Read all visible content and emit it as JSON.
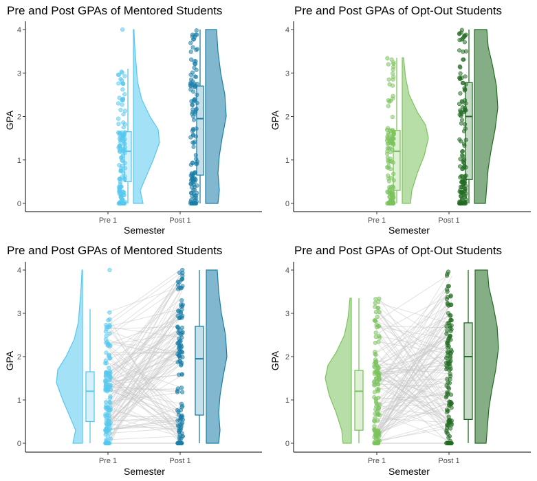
{
  "chart_data": [
    {
      "type": "raincloud",
      "title": "Pre and Post GPAs of Mentored Students",
      "xlabel": "Semester",
      "ylabel": "GPA",
      "ylim": [
        0,
        4
      ],
      "yticks": [
        "0",
        "1",
        "2",
        "3",
        "4"
      ],
      "categories": [
        "Pre 1",
        "Post 1"
      ],
      "layout": "right",
      "paired_lines": false,
      "colors": {
        "pre": "#56c8ef",
        "post": "#1b7ea8"
      },
      "series": [
        {
          "group": "Pre 1",
          "box": {
            "min": 0,
            "q1": 0.5,
            "median": 1.2,
            "q3": 1.65,
            "max": 3.1,
            "outliers": [
              4.0
            ]
          },
          "density": [
            [
              0,
              0.35
            ],
            [
              0.3,
              0.25
            ],
            [
              0.6,
              0.45
            ],
            [
              1.0,
              0.72
            ],
            [
              1.4,
              0.95
            ],
            [
              1.7,
              0.9
            ],
            [
              2.0,
              0.6
            ],
            [
              2.4,
              0.3
            ],
            [
              2.8,
              0.15
            ],
            [
              3.2,
              0.1
            ],
            [
              3.6,
              0.05
            ],
            [
              4.0,
              0.02
            ]
          ]
        },
        {
          "group": "Post 1",
          "box": {
            "min": 0,
            "q1": 0.65,
            "median": 1.95,
            "q3": 2.7,
            "max": 4.0,
            "outliers": []
          },
          "density": [
            [
              0,
              0.45
            ],
            [
              0.3,
              0.5
            ],
            [
              0.7,
              0.45
            ],
            [
              1.1,
              0.5
            ],
            [
              1.5,
              0.6
            ],
            [
              2.0,
              0.75
            ],
            [
              2.5,
              0.7
            ],
            [
              3.0,
              0.55
            ],
            [
              3.5,
              0.45
            ],
            [
              4.0,
              0.4
            ]
          ]
        }
      ]
    },
    {
      "type": "raincloud",
      "title": "Pre and Post GPAs of Opt-Out Students",
      "xlabel": "Semester",
      "ylabel": "GPA",
      "ylim": [
        0,
        4
      ],
      "yticks": [
        "0",
        "1",
        "2",
        "3",
        "4"
      ],
      "categories": [
        "Pre 1",
        "Post 1"
      ],
      "layout": "right",
      "paired_lines": false,
      "colors": {
        "pre": "#7cc35c",
        "post": "#226b22"
      },
      "series": [
        {
          "group": "Pre 1",
          "box": {
            "min": 0,
            "q1": 0.3,
            "median": 1.2,
            "q3": 1.68,
            "max": 3.35,
            "outliers": []
          },
          "density": [
            [
              0,
              0.3
            ],
            [
              0.3,
              0.35
            ],
            [
              0.7,
              0.55
            ],
            [
              1.1,
              0.8
            ],
            [
              1.5,
              0.95
            ],
            [
              1.8,
              0.85
            ],
            [
              2.1,
              0.55
            ],
            [
              2.5,
              0.25
            ],
            [
              2.9,
              0.12
            ],
            [
              3.35,
              0.05
            ]
          ]
        },
        {
          "group": "Post 1",
          "box": {
            "min": 0,
            "q1": 0.55,
            "median": 2.0,
            "q3": 2.78,
            "max": 4.0,
            "outliers": []
          },
          "density": [
            [
              0,
              0.4
            ],
            [
              0.4,
              0.45
            ],
            [
              0.8,
              0.5
            ],
            [
              1.2,
              0.6
            ],
            [
              1.7,
              0.75
            ],
            [
              2.2,
              0.85
            ],
            [
              2.7,
              0.8
            ],
            [
              3.2,
              0.65
            ],
            [
              3.6,
              0.5
            ],
            [
              4.0,
              0.45
            ]
          ]
        }
      ]
    },
    {
      "type": "raincloud",
      "title": "Pre and Post GPAs of Mentored Students",
      "xlabel": "Semester",
      "ylabel": "GPA",
      "ylim": [
        0,
        4
      ],
      "yticks": [
        "0",
        "1",
        "2",
        "3",
        "4"
      ],
      "categories": [
        "Pre 1",
        "Post 1"
      ],
      "layout": "flipped",
      "paired_lines": true,
      "colors": {
        "pre": "#56c8ef",
        "post": "#1b7ea8"
      },
      "series": [
        {
          "group": "Pre 1",
          "box": {
            "min": 0,
            "q1": 0.5,
            "median": 1.2,
            "q3": 1.65,
            "max": 3.1,
            "outliers": [
              4.0
            ]
          },
          "density": [
            [
              0,
              0.35
            ],
            [
              0.3,
              0.25
            ],
            [
              0.6,
              0.45
            ],
            [
              1.0,
              0.72
            ],
            [
              1.4,
              0.95
            ],
            [
              1.7,
              0.9
            ],
            [
              2.0,
              0.6
            ],
            [
              2.4,
              0.3
            ],
            [
              2.8,
              0.15
            ],
            [
              3.2,
              0.1
            ],
            [
              3.6,
              0.05
            ],
            [
              4.0,
              0.02
            ]
          ]
        },
        {
          "group": "Post 1",
          "box": {
            "min": 0,
            "q1": 0.65,
            "median": 1.95,
            "q3": 2.7,
            "max": 4.0,
            "outliers": []
          },
          "density": [
            [
              0,
              0.45
            ],
            [
              0.3,
              0.5
            ],
            [
              0.7,
              0.45
            ],
            [
              1.1,
              0.5
            ],
            [
              1.5,
              0.6
            ],
            [
              2.0,
              0.75
            ],
            [
              2.5,
              0.7
            ],
            [
              3.0,
              0.55
            ],
            [
              3.5,
              0.45
            ],
            [
              4.0,
              0.4
            ]
          ]
        }
      ]
    },
    {
      "type": "raincloud",
      "title": "Pre and Post GPAs of Opt-Out Students",
      "xlabel": "Semester",
      "ylabel": "GPA",
      "ylim": [
        0,
        4
      ],
      "yticks": [
        "0",
        "1",
        "2",
        "3",
        "4"
      ],
      "categories": [
        "Pre 1",
        "Post 1"
      ],
      "layout": "flipped",
      "paired_lines": true,
      "colors": {
        "pre": "#7cc35c",
        "post": "#226b22"
      },
      "series": [
        {
          "group": "Pre 1",
          "box": {
            "min": 0,
            "q1": 0.3,
            "median": 1.2,
            "q3": 1.68,
            "max": 3.35,
            "outliers": []
          },
          "density": [
            [
              0,
              0.3
            ],
            [
              0.3,
              0.35
            ],
            [
              0.7,
              0.55
            ],
            [
              1.1,
              0.8
            ],
            [
              1.5,
              0.95
            ],
            [
              1.8,
              0.85
            ],
            [
              2.1,
              0.55
            ],
            [
              2.5,
              0.25
            ],
            [
              2.9,
              0.12
            ],
            [
              3.35,
              0.05
            ]
          ]
        },
        {
          "group": "Post 1",
          "box": {
            "min": 0,
            "q1": 0.55,
            "median": 2.0,
            "q3": 2.78,
            "max": 4.0,
            "outliers": []
          },
          "density": [
            [
              0,
              0.4
            ],
            [
              0.4,
              0.45
            ],
            [
              0.8,
              0.5
            ],
            [
              1.2,
              0.6
            ],
            [
              1.7,
              0.75
            ],
            [
              2.2,
              0.85
            ],
            [
              2.7,
              0.8
            ],
            [
              3.2,
              0.65
            ],
            [
              3.6,
              0.5
            ],
            [
              4.0,
              0.45
            ]
          ]
        }
      ]
    }
  ]
}
